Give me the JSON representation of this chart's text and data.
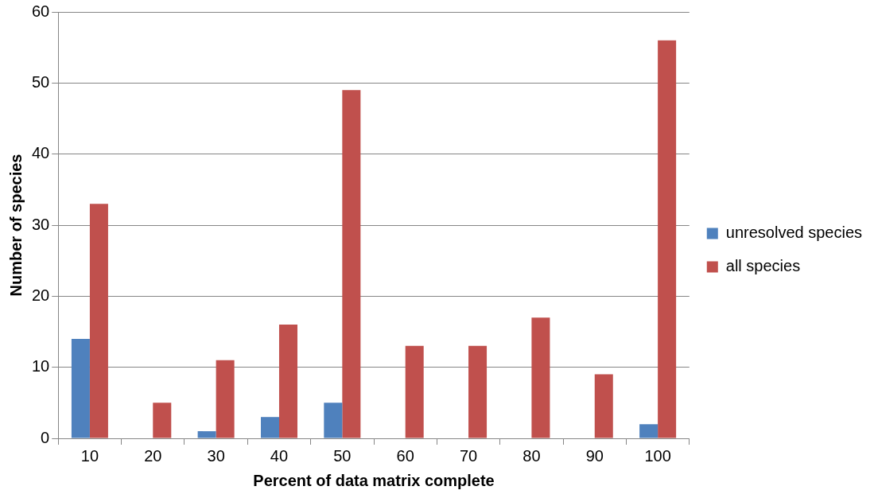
{
  "chart_data": {
    "type": "bar",
    "xlabel": "Percent of data matrix complete",
    "ylabel": "Number of species",
    "categories": [
      "10",
      "20",
      "30",
      "40",
      "50",
      "60",
      "70",
      "80",
      "90",
      "100"
    ],
    "series": [
      {
        "name": "unresolved species",
        "color": "#4f81bd",
        "values": [
          14,
          0,
          1,
          3,
          5,
          0,
          0,
          0,
          0,
          2
        ]
      },
      {
        "name": "all species",
        "color": "#c0504d",
        "values": [
          33,
          5,
          11,
          16,
          49,
          13,
          13,
          17,
          9,
          56
        ]
      }
    ],
    "ylim": [
      0,
      60
    ],
    "yticks": [
      0,
      10,
      20,
      30,
      40,
      50,
      60
    ],
    "grid": "y",
    "legend": "right"
  }
}
